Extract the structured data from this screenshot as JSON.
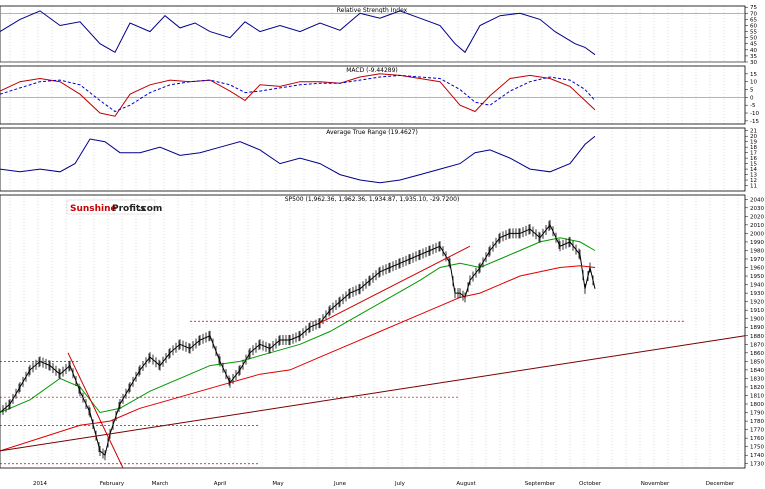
{
  "logo": {
    "part1": "Sunshine",
    "part2": "Profits",
    "part3": ".com"
  },
  "chart_data": [
    {
      "type": "line",
      "title": "Relative Strength Index",
      "ylim": [
        30,
        76
      ],
      "yticks": [
        30,
        35,
        40,
        45,
        50,
        55,
        60,
        65,
        70,
        75
      ],
      "reference_lines": [
        30,
        70
      ],
      "series": [
        {
          "color": "#00008b",
          "x": [
            0,
            20,
            40,
            60,
            80,
            100,
            115,
            130,
            150,
            165,
            180,
            195,
            210,
            230,
            245,
            260,
            280,
            300,
            320,
            340,
            360,
            380,
            400,
            420,
            440,
            455,
            465,
            480,
            500,
            520,
            540,
            555,
            575,
            585,
            595
          ],
          "values": [
            55,
            65,
            72,
            60,
            63,
            45,
            38,
            62,
            55,
            68,
            58,
            62,
            55,
            50,
            63,
            55,
            60,
            55,
            62,
            56,
            70,
            66,
            72,
            66,
            60,
            45,
            38,
            60,
            68,
            70,
            65,
            55,
            45,
            42,
            36
          ]
        }
      ]
    },
    {
      "type": "line",
      "title": "MACD (-9.44289)",
      "ylim": [
        -17,
        20
      ],
      "yticks": [
        -15,
        -10,
        -5,
        0,
        5,
        10,
        15
      ],
      "series": [
        {
          "color": "#c00000",
          "x": [
            0,
            20,
            40,
            60,
            80,
            100,
            115,
            130,
            150,
            170,
            190,
            210,
            230,
            245,
            260,
            280,
            300,
            320,
            340,
            360,
            380,
            400,
            420,
            440,
            460,
            475,
            490,
            510,
            530,
            550,
            570,
            585,
            595
          ],
          "values": [
            4,
            10,
            12,
            10,
            2,
            -10,
            -12,
            2,
            8,
            11,
            10,
            11,
            4,
            -2,
            8,
            7,
            10,
            10,
            9,
            13,
            15,
            14,
            12,
            10,
            -5,
            -9,
            1,
            12,
            14,
            12,
            7,
            -2,
            -8
          ]
        },
        {
          "color": "#0000cc",
          "x": [
            0,
            20,
            40,
            60,
            80,
            100,
            115,
            130,
            150,
            170,
            190,
            210,
            230,
            245,
            260,
            280,
            300,
            320,
            340,
            360,
            380,
            400,
            420,
            440,
            460,
            475,
            490,
            510,
            530,
            550,
            570,
            585,
            595
          ],
          "values": [
            2,
            6,
            10,
            11,
            8,
            -2,
            -9,
            -5,
            3,
            8,
            10,
            11,
            8,
            3,
            4,
            6,
            8,
            9,
            9,
            11,
            13,
            14,
            13,
            12,
            5,
            -3,
            -5,
            4,
            10,
            13,
            11,
            5,
            -2
          ]
        }
      ]
    },
    {
      "type": "line",
      "title": "Average True Range (19.4627)",
      "ylim": [
        10,
        21.5
      ],
      "yticks": [
        11,
        12,
        13,
        14,
        15,
        16,
        17,
        18,
        19,
        20,
        21
      ],
      "series": [
        {
          "color": "#00008b",
          "x": [
            0,
            20,
            40,
            60,
            75,
            90,
            105,
            120,
            140,
            160,
            180,
            200,
            220,
            240,
            260,
            280,
            300,
            320,
            340,
            360,
            380,
            400,
            420,
            440,
            460,
            475,
            490,
            510,
            530,
            550,
            570,
            585,
            595
          ],
          "values": [
            14,
            13.5,
            14,
            13.5,
            15,
            19.5,
            19,
            17,
            17,
            18,
            16.5,
            17,
            18,
            19,
            17.5,
            15,
            16,
            15,
            13,
            12,
            11.5,
            12,
            13,
            14,
            15,
            17,
            17.5,
            16,
            14,
            13.5,
            15,
            18.5,
            20
          ]
        }
      ]
    },
    {
      "type": "line",
      "title": "SP500 (1,962.36, 1,962.36, 1,934.87, 1,935.10, -29.7200)",
      "ylim": [
        1725,
        2045
      ],
      "yticks": [
        1730,
        1740,
        1750,
        1760,
        1770,
        1780,
        1790,
        1800,
        1810,
        1820,
        1830,
        1840,
        1850,
        1860,
        1870,
        1880,
        1890,
        1900,
        1910,
        1920,
        1930,
        1940,
        1950,
        1960,
        1970,
        1980,
        1990,
        2000,
        2010,
        2020,
        2030,
        2040
      ],
      "xticks": [
        "2014",
        "February",
        "March",
        "April",
        "May",
        "June",
        "July",
        "August",
        "September",
        "October",
        "November",
        "December"
      ],
      "series": [
        {
          "color": "#000000",
          "x": [
            0,
            10,
            20,
            30,
            40,
            50,
            60,
            70,
            80,
            90,
            100,
            105,
            110,
            120,
            130,
            140,
            150,
            160,
            170,
            180,
            190,
            200,
            210,
            220,
            230,
            240,
            250,
            260,
            270,
            280,
            290,
            300,
            310,
            320,
            330,
            340,
            350,
            360,
            370,
            380,
            390,
            400,
            410,
            420,
            430,
            440,
            450,
            455,
            460,
            465,
            470,
            480,
            490,
            500,
            510,
            520,
            530,
            540,
            550,
            560,
            570,
            580,
            585,
            590,
            595
          ],
          "values": [
            1790,
            1800,
            1820,
            1840,
            1850,
            1845,
            1835,
            1845,
            1815,
            1790,
            1745,
            1740,
            1765,
            1800,
            1820,
            1840,
            1855,
            1845,
            1860,
            1870,
            1865,
            1875,
            1880,
            1850,
            1825,
            1840,
            1860,
            1870,
            1865,
            1875,
            1875,
            1880,
            1890,
            1895,
            1910,
            1920,
            1930,
            1935,
            1945,
            1955,
            1960,
            1965,
            1970,
            1975,
            1980,
            1985,
            1965,
            1930,
            1930,
            1925,
            1945,
            1960,
            1980,
            1995,
            2000,
            2000,
            2005,
            1995,
            2010,
            1985,
            1990,
            1975,
            1935,
            1960,
            1935
          ]
        },
        {
          "color": "#009900",
          "x": [
            0,
            30,
            60,
            80,
            100,
            120,
            150,
            180,
            210,
            240,
            270,
            300,
            330,
            360,
            390,
            420,
            440,
            460,
            480,
            500,
            520,
            540,
            560,
            580,
            595
          ],
          "values": [
            1790,
            1805,
            1830,
            1820,
            1790,
            1795,
            1815,
            1830,
            1845,
            1850,
            1860,
            1870,
            1885,
            1905,
            1925,
            1945,
            1960,
            1965,
            1960,
            1970,
            1980,
            1990,
            1995,
            1990,
            1980
          ]
        },
        {
          "color": "#e00000",
          "x": [
            0,
            40,
            80,
            110,
            140,
            170,
            200,
            230,
            260,
            290,
            320,
            350,
            380,
            410,
            440,
            460,
            480,
            500,
            520,
            540,
            560,
            580,
            595
          ],
          "values": [
            1745,
            1760,
            1775,
            1780,
            1795,
            1805,
            1815,
            1825,
            1835,
            1840,
            1855,
            1870,
            1885,
            1900,
            1915,
            1925,
            1930,
            1940,
            1950,
            1955,
            1960,
            1962,
            1960
          ]
        }
      ]
    }
  ]
}
